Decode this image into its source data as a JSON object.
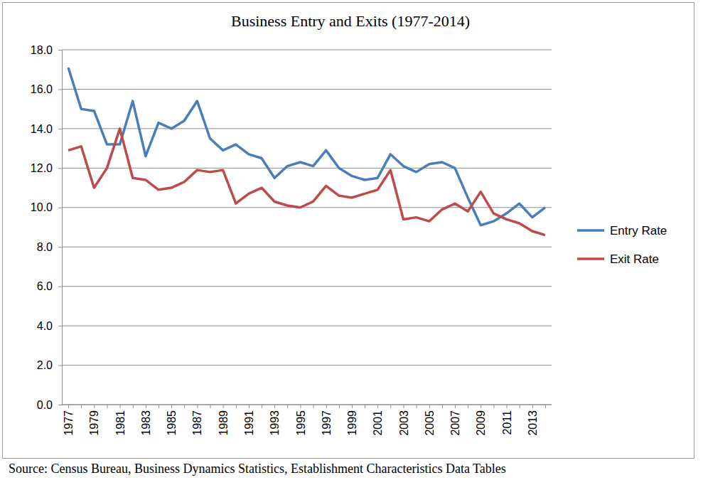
{
  "chart_data": {
    "type": "line",
    "title": "Business Entry and Exits (1977-2014)",
    "source": "Source: Census Bureau, Business Dynamics Statistics, Establishment Characteristics Data Tables",
    "categories": [
      "1977",
      null,
      "1979",
      null,
      "1981",
      null,
      "1983",
      null,
      "1985",
      null,
      "1987",
      null,
      "1989",
      null,
      "1991",
      null,
      "1993",
      null,
      "1995",
      null,
      "1997",
      null,
      "1999",
      null,
      "2001",
      null,
      "2003",
      null,
      "2005",
      null,
      "2007",
      null,
      "2009",
      null,
      "2011",
      null,
      "2013",
      null
    ],
    "series": [
      {
        "name": "Entry Rate",
        "color": "#4a7ebb",
        "values": [
          17.1,
          15.0,
          14.9,
          13.2,
          13.2,
          15.4,
          12.6,
          14.3,
          14.0,
          14.4,
          15.4,
          13.5,
          12.9,
          13.2,
          12.7,
          12.5,
          11.5,
          12.1,
          12.3,
          12.1,
          12.9,
          12.0,
          11.6,
          11.4,
          11.5,
          12.7,
          12.1,
          11.8,
          12.2,
          12.3,
          12.0,
          10.5,
          9.1,
          9.3,
          9.7,
          10.2,
          9.5,
          10.0
        ]
      },
      {
        "name": "Exit Rate",
        "color": "#be4b48",
        "values": [
          12.9,
          13.1,
          11.0,
          12.0,
          14.0,
          11.5,
          11.4,
          10.9,
          11.0,
          11.3,
          11.9,
          11.8,
          11.9,
          10.2,
          10.7,
          11.0,
          10.3,
          10.1,
          10.0,
          10.3,
          11.1,
          10.6,
          10.5,
          10.7,
          10.9,
          11.9,
          9.4,
          9.5,
          9.3,
          9.9,
          10.2,
          9.8,
          10.8,
          9.7,
          9.4,
          9.2,
          8.8,
          8.6
        ]
      }
    ],
    "ylim": [
      0,
      18
    ],
    "yticks": [
      {
        "value": 0,
        "label": "0.0"
      },
      {
        "value": 2,
        "label": "2.0"
      },
      {
        "value": 4,
        "label": "4.0"
      },
      {
        "value": 6,
        "label": "6.0"
      },
      {
        "value": 8,
        "label": "8.0"
      },
      {
        "value": 10,
        "label": "10.0"
      },
      {
        "value": 12,
        "label": "12.0"
      },
      {
        "value": 14,
        "label": "14.0"
      },
      {
        "value": 16,
        "label": "16.0"
      },
      {
        "value": 18,
        "label": "18.0"
      }
    ],
    "grid": true,
    "legend": "right"
  }
}
